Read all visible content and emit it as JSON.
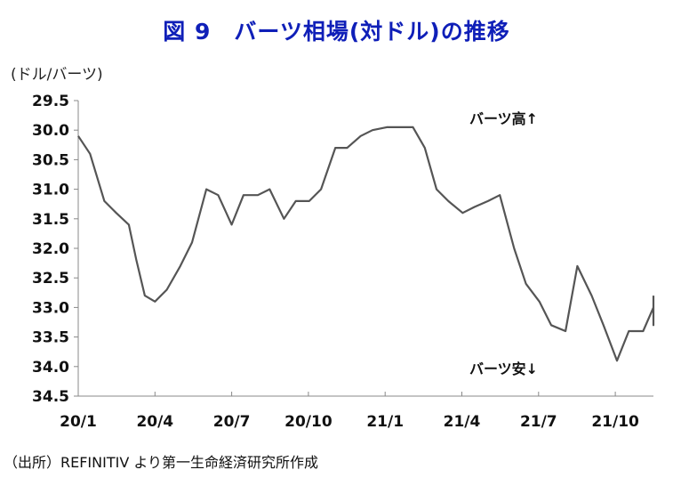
{
  "title": "図 9　バーツ相場(対ドル)の推移",
  "unit_label": "(ドル/バーツ)",
  "source": "（出所）REFINITIV より第一生命経済研究所作成",
  "annotations": {
    "top": "バーツ高↑",
    "bottom": "バーツ安↓"
  },
  "colors": {
    "title": "#0f1fb8",
    "line": "#555555",
    "axis": "#888888"
  },
  "chart_data": {
    "type": "line",
    "title": "図 9　バーツ相場(対ドル)の推移",
    "ylabel": "(ドル/バーツ)",
    "y_reversed": true,
    "ylim": [
      29.5,
      34.5
    ],
    "yticks": [
      "29.5",
      "30.0",
      "30.5",
      "31.0",
      "31.5",
      "32.0",
      "32.5",
      "33.0",
      "33.5",
      "34.0",
      "34.5"
    ],
    "xticks": [
      "20/1",
      "20/4",
      "20/7",
      "20/10",
      "21/1",
      "21/4",
      "21/7",
      "21/10"
    ],
    "x_range": [
      "2020-01",
      "2021-12"
    ],
    "series": [
      {
        "x": [
          "2020-01-01",
          "2020-01-15",
          "2020-02-01",
          "2020-02-15",
          "2020-03-01",
          "2020-03-10",
          "2020-03-20",
          "2020-04-01",
          "2020-04-15",
          "2020-05-01",
          "2020-05-15",
          "2020-06-01",
          "2020-06-15",
          "2020-07-01",
          "2020-07-15",
          "2020-08-01",
          "2020-08-15",
          "2020-09-01",
          "2020-09-15",
          "2020-10-01",
          "2020-10-15",
          "2020-11-01",
          "2020-11-15",
          "2020-12-01",
          "2020-12-15",
          "2021-01-01",
          "2021-01-15",
          "2021-02-01",
          "2021-02-15",
          "2021-03-01",
          "2021-03-15",
          "2021-04-01",
          "2021-04-15",
          "2021-05-01",
          "2021-05-15",
          "2021-06-01",
          "2021-06-15",
          "2021-07-01",
          "2021-07-15",
          "2021-08-01",
          "2021-08-15",
          "2021-09-01",
          "2021-09-15",
          "2021-10-01",
          "2021-10-15",
          "2021-11-01",
          "2021-11-15",
          "2021-12-01",
          "2021-12-15"
        ],
        "values": [
          30.1,
          30.4,
          31.2,
          31.4,
          31.6,
          32.2,
          32.8,
          32.9,
          32.7,
          32.3,
          31.9,
          31.0,
          31.1,
          31.6,
          31.1,
          31.1,
          31.0,
          31.5,
          31.2,
          31.2,
          31.0,
          30.3,
          30.3,
          30.1,
          30.0,
          29.95,
          29.95,
          29.95,
          30.3,
          31.0,
          31.2,
          31.4,
          31.3,
          31.2,
          31.1,
          32.0,
          32.6,
          32.9,
          33.3,
          33.4,
          32.3,
          32.8,
          33.3,
          33.9,
          33.4,
          33.4,
          33.0,
          33.3,
          32.8
        ]
      }
    ]
  }
}
